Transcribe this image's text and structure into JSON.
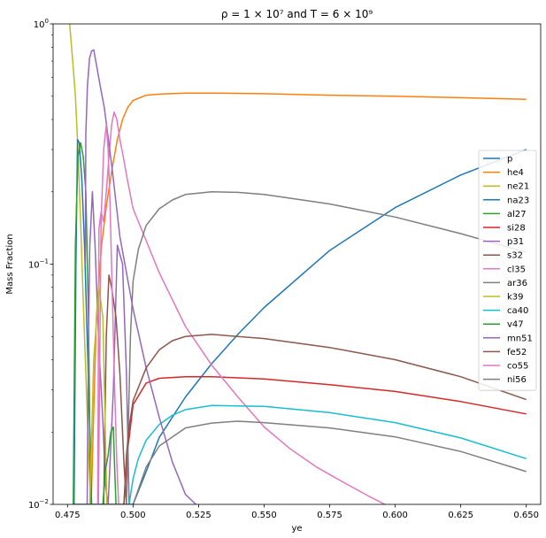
{
  "chart_data": {
    "type": "line",
    "title": "ρ = 1 × 10⁷ and T = 6 × 10⁹",
    "xlabel": "ye",
    "ylabel": "Mass Fraction",
    "xlim": [
      0.4695,
      0.6555
    ],
    "ylim": [
      0.01,
      1.0
    ],
    "yscale": "log",
    "grid": false,
    "legend_position": "right",
    "xticks": [
      "0.475",
      "0.500",
      "0.525",
      "0.550",
      "0.575",
      "0.600",
      "0.625",
      "0.650"
    ],
    "xtick_values": [
      0.475,
      0.5,
      0.525,
      0.55,
      0.575,
      0.6,
      0.625,
      0.65
    ],
    "yticks": [
      {
        "base": "10",
        "exp": "−2",
        "value": 0.01
      },
      {
        "base": "10",
        "exp": "−1",
        "value": 0.1
      },
      {
        "base": "10",
        "exp": "0",
        "value": 1.0
      }
    ],
    "series": [
      {
        "name": "p",
        "color": "#1f77b4",
        "x": [
          0.477,
          0.5,
          0.505,
          0.51,
          0.52,
          0.53,
          0.54,
          0.55,
          0.575,
          0.6,
          0.625,
          0.65
        ],
        "y": [
          0.01,
          0.01,
          0.0137,
          0.019,
          0.028,
          0.0385,
          0.051,
          0.066,
          0.114,
          0.172,
          0.235,
          0.3
        ]
      },
      {
        "name": "he4",
        "color": "#ff7f0e",
        "x": [
          0.484,
          0.486,
          0.488,
          0.49,
          0.492,
          0.494,
          0.496,
          0.498,
          0.5,
          0.505,
          0.51,
          0.52,
          0.53,
          0.55,
          0.575,
          0.6,
          0.625,
          0.65
        ],
        "y": [
          0.01,
          0.06,
          0.12,
          0.18,
          0.25,
          0.33,
          0.4,
          0.45,
          0.48,
          0.505,
          0.51,
          0.515,
          0.515,
          0.512,
          0.505,
          0.5,
          0.493,
          0.485
        ]
      },
      {
        "name": "ne21",
        "color": "#bcbd22",
        "x": [
          0.4758,
          0.477,
          0.478,
          0.479,
          0.48,
          0.481,
          0.482,
          0.483,
          0.4838
        ],
        "y": [
          1.0,
          0.7,
          0.5,
          0.3,
          0.15,
          0.07,
          0.035,
          0.017,
          0.01
        ]
      },
      {
        "name": "na23",
        "color": "#1f77b4",
        "x": [
          0.4775,
          0.4782,
          0.4788,
          0.4795,
          0.4805,
          0.4815,
          0.4825,
          0.4835,
          0.4842
        ],
        "y": [
          0.01,
          0.1,
          0.33,
          0.32,
          0.22,
          0.12,
          0.05,
          0.02,
          0.01
        ]
      },
      {
        "name": "al27",
        "color": "#2ca02c",
        "x": [
          0.4772,
          0.478,
          0.479,
          0.48,
          0.481,
          0.482,
          0.483,
          0.4838
        ],
        "y": [
          0.01,
          0.12,
          0.28,
          0.32,
          0.28,
          0.2,
          0.06,
          0.01
        ]
      },
      {
        "name": "si28",
        "color": "#d62728",
        "x": [
          0.4965,
          0.498,
          0.5,
          0.505,
          0.51,
          0.52,
          0.53,
          0.55,
          0.575,
          0.6,
          0.625,
          0.65
        ],
        "y": [
          0.01,
          0.017,
          0.026,
          0.032,
          0.0335,
          0.034,
          0.034,
          0.0333,
          0.0315,
          0.0295,
          0.0268,
          0.0238
        ]
      },
      {
        "name": "p31",
        "color": "#9467bd",
        "x": [
          0.4825,
          0.483,
          0.4835,
          0.4845,
          0.4855,
          0.487,
          0.4885,
          0.4895,
          0.4905,
          0.4925,
          0.494,
          0.496,
          0.4975,
          0.4985
        ],
        "y": [
          0.01,
          0.05,
          0.12,
          0.2,
          0.12,
          0.045,
          0.022,
          0.012,
          0.01,
          0.03,
          0.12,
          0.1,
          0.035,
          0.01
        ]
      },
      {
        "name": "s32",
        "color": "#8c564b",
        "x": [
          0.4888,
          0.4898,
          0.4908,
          0.4918,
          0.4935,
          0.495,
          0.4965,
          0.4975
        ],
        "y": [
          0.01,
          0.05,
          0.09,
          0.08,
          0.06,
          0.035,
          0.015,
          0.01
        ]
      },
      {
        "name": "cl35",
        "color": "#e377c2",
        "x": [
          0.4865,
          0.487,
          0.4878,
          0.4888,
          0.4898,
          0.4908,
          0.4918,
          0.4928,
          0.4938,
          0.495,
          0.496,
          0.498,
          0.5,
          0.51,
          0.52,
          0.53,
          0.54,
          0.55,
          0.56,
          0.57,
          0.58,
          0.59,
          0.6
        ],
        "y": [
          0.01,
          0.14,
          0.165,
          0.15,
          0.2,
          0.28,
          0.38,
          0.43,
          0.4,
          0.33,
          0.29,
          0.22,
          0.17,
          0.092,
          0.055,
          0.038,
          0.028,
          0.021,
          0.017,
          0.0143,
          0.0124,
          0.0108,
          0.0095
        ]
      },
      {
        "name": "ar36",
        "color": "#7f7f7f",
        "x": [
          0.4975,
          0.499,
          0.5,
          0.502,
          0.505,
          0.51,
          0.515,
          0.52,
          0.53,
          0.54,
          0.55,
          0.575,
          0.6,
          0.625,
          0.65
        ],
        "y": [
          0.01,
          0.05,
          0.085,
          0.115,
          0.145,
          0.17,
          0.185,
          0.195,
          0.2,
          0.199,
          0.195,
          0.178,
          0.157,
          0.134,
          0.112
        ]
      },
      {
        "name": "k39",
        "color": "#bcbd22",
        "x": [
          0.4835,
          0.485,
          0.487,
          0.4885,
          0.49
        ],
        "y": [
          0.01,
          0.04,
          0.08,
          0.06,
          0.01
        ]
      },
      {
        "name": "ca40",
        "color": "#17becf",
        "x": [
          0.4985,
          0.5,
          0.502,
          0.505,
          0.51,
          0.515,
          0.52,
          0.53,
          0.55,
          0.575,
          0.6,
          0.625,
          0.65
        ],
        "y": [
          0.01,
          0.0128,
          0.0155,
          0.0185,
          0.0215,
          0.0235,
          0.0248,
          0.0258,
          0.0256,
          0.0241,
          0.0219,
          0.0189,
          0.0155
        ]
      },
      {
        "name": "v47",
        "color": "#2ca02c",
        "x": [
          0.4885,
          0.489,
          0.4895,
          0.4905,
          0.4915,
          0.4925,
          0.493,
          0.4935
        ],
        "y": [
          0.01,
          0.012,
          0.014,
          0.016,
          0.02,
          0.021,
          0.014,
          0.01
        ]
      },
      {
        "name": "mn51",
        "color": "#9467bd",
        "x": [
          0.4818,
          0.482,
          0.4826,
          0.4834,
          0.4842,
          0.485,
          0.4862,
          0.4875,
          0.489,
          0.492,
          0.495,
          0.5,
          0.505,
          0.51,
          0.515,
          0.52,
          0.524
        ],
        "y": [
          0.1,
          0.35,
          0.55,
          0.72,
          0.77,
          0.78,
          0.66,
          0.55,
          0.45,
          0.25,
          0.13,
          0.065,
          0.037,
          0.023,
          0.015,
          0.011,
          0.01
        ]
      },
      {
        "name": "fe52",
        "color": "#8c564b",
        "x": [
          0.4965,
          0.4975,
          0.4985,
          0.5,
          0.505,
          0.51,
          0.515,
          0.52,
          0.53,
          0.55,
          0.575,
          0.6,
          0.625,
          0.65
        ],
        "y": [
          0.01,
          0.016,
          0.021,
          0.027,
          0.037,
          0.044,
          0.048,
          0.05,
          0.051,
          0.049,
          0.045,
          0.04,
          0.034,
          0.0273
        ]
      },
      {
        "name": "co55",
        "color": "#e377c2",
        "x": [
          0.4868,
          0.4878,
          0.4888,
          0.4898,
          0.4905,
          0.4912,
          0.492,
          0.493,
          0.4938,
          0.4945
        ],
        "y": [
          0.01,
          0.15,
          0.3,
          0.38,
          0.3,
          0.18,
          0.08,
          0.03,
          0.015,
          0.01
        ]
      },
      {
        "name": "ni56",
        "color": "#7f7f7f",
        "x": [
          0.5,
          0.505,
          0.51,
          0.52,
          0.53,
          0.54,
          0.55,
          0.575,
          0.6,
          0.625,
          0.65
        ],
        "y": [
          0.01,
          0.0143,
          0.0175,
          0.0208,
          0.0218,
          0.0222,
          0.0219,
          0.0208,
          0.0191,
          0.0166,
          0.0137
        ]
      }
    ]
  }
}
